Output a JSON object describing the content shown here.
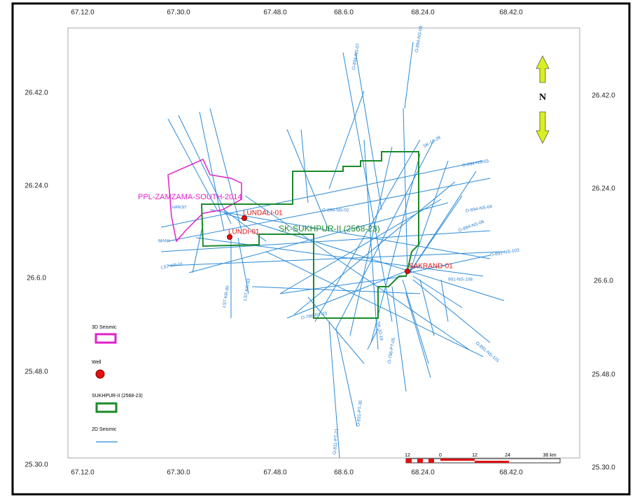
{
  "map": {
    "top_coords": [
      "67.12.0",
      "67.30.0",
      "67.48.0",
      "68.6.0",
      "68.24.0",
      "68.42.0"
    ],
    "bottom_coords": [
      "67.12.0",
      "67.30.0",
      "67.48.0",
      "68.6.0",
      "68.24.0",
      "68.42.0"
    ],
    "left_coords": [
      "26.42.0",
      "26.24.0",
      "26.6.0",
      "25.48.0",
      "25.30.0"
    ],
    "right_coords": [
      "26.42.0",
      "26.24.0",
      "26.6.0",
      "25.48.0",
      "25.30.0"
    ],
    "north": "N",
    "areas": {
      "zamzama": "PPL-ZAMZAMA-SOUTH-2014",
      "sukhpur": "SK-SUKHPUR-II (2568-23)"
    },
    "wells": [
      "LUNDALI-01",
      "LUNDI-01",
      "SAKRAND-01"
    ],
    "seismic_labels": [
      "O-894-NS-09",
      "O-894-NS-07",
      "SK-10-28",
      "O-894-NS-03",
      "O-894-NS-04",
      "O-894-NS-06",
      "O-891-NS-103",
      "901-NS-108",
      "O-891-NS-101",
      "O-786-PT-03",
      "O-786-PT-05",
      "O-811-PT-21",
      "O-831-PT-30",
      "LS7-KR-01",
      "LS7-KR-03",
      "LS7-KR-05",
      "HPK97",
      "MANI",
      "O-894-NS-02",
      "SK-10-19"
    ],
    "legend": {
      "seismic_3d": "3D Seismic",
      "well": "Well",
      "block": "SUKHPUR-II (2568-23)",
      "seismic_2d": "2D Seismic"
    },
    "scale": [
      "12",
      "0",
      "12",
      "24",
      "36 km"
    ]
  }
}
